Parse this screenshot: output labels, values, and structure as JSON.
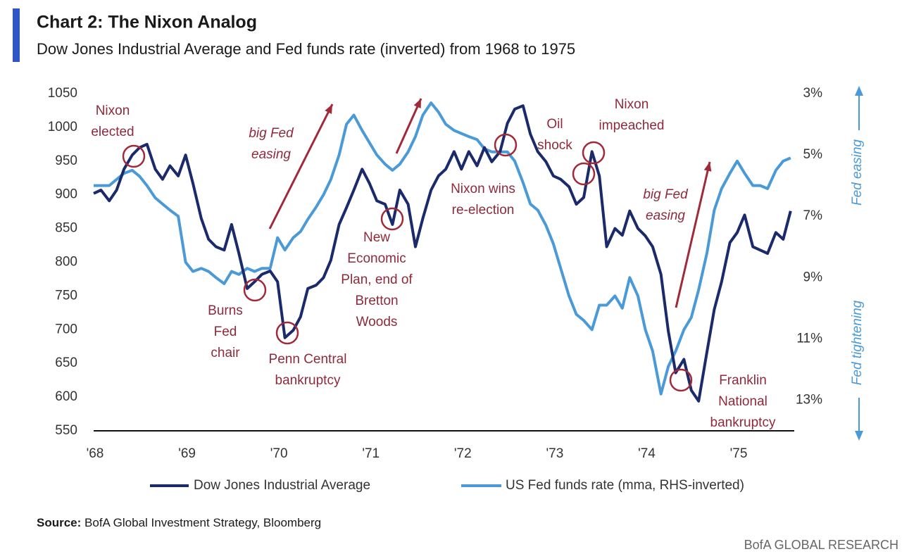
{
  "chart_data": {
    "type": "line",
    "title": "Chart 2: The Nixon Analog",
    "subtitle": "Dow Jones Industrial Average and Fed funds rate (inverted) from 1968 to 1975",
    "x": [
      1968,
      1968.08,
      1968.17,
      1968.25,
      1968.33,
      1968.42,
      1968.5,
      1968.58,
      1968.67,
      1968.75,
      1968.83,
      1968.92,
      1969,
      1969.08,
      1969.17,
      1969.25,
      1969.33,
      1969.42,
      1969.5,
      1969.58,
      1969.67,
      1969.75,
      1969.83,
      1969.92,
      1970,
      1970.08,
      1970.17,
      1970.25,
      1970.33,
      1970.42,
      1970.5,
      1970.58,
      1970.67,
      1970.75,
      1970.83,
      1970.92,
      1971,
      1971.08,
      1971.17,
      1971.25,
      1971.33,
      1971.42,
      1971.5,
      1971.58,
      1971.67,
      1971.75,
      1971.83,
      1971.92,
      1972,
      1972.08,
      1972.17,
      1972.25,
      1972.33,
      1972.42,
      1972.5,
      1972.58,
      1972.67,
      1972.75,
      1972.83,
      1972.92,
      1973,
      1973.08,
      1973.17,
      1973.25,
      1973.33,
      1973.42,
      1973.5,
      1973.58,
      1973.67,
      1973.75,
      1973.83,
      1973.92,
      1974,
      1974.08,
      1974.17,
      1974.25,
      1974.33,
      1974.42,
      1974.5,
      1974.58,
      1974.67,
      1974.75,
      1974.83,
      1974.92,
      1975,
      1975.08,
      1975.17,
      1975.25,
      1975.33,
      1975.42,
      1975.5,
      1975.58
    ],
    "xlim": [
      1968,
      1975.62
    ],
    "xticks": [
      {
        "value": 1968,
        "label": "'68"
      },
      {
        "value": 1969,
        "label": "'69"
      },
      {
        "value": 1970,
        "label": "'70"
      },
      {
        "value": 1971,
        "label": "'71"
      },
      {
        "value": 1972,
        "label": "'72"
      },
      {
        "value": 1973,
        "label": "'73"
      },
      {
        "value": 1974,
        "label": "'74"
      },
      {
        "value": 1975,
        "label": "'75"
      }
    ],
    "ylim": [
      550,
      1050
    ],
    "yticks": [
      550,
      600,
      650,
      700,
      750,
      800,
      850,
      900,
      950,
      1000,
      1050
    ],
    "y2lim": [
      14,
      3
    ],
    "y2ticks": [
      {
        "value": 3,
        "label": "3%"
      },
      {
        "value": 5,
        "label": "5%"
      },
      {
        "value": 7,
        "label": "7%"
      },
      {
        "value": 9,
        "label": "9%"
      },
      {
        "value": 11,
        "label": "11%"
      },
      {
        "value": 13,
        "label": "13%"
      }
    ],
    "series": [
      {
        "name": "Dow Jones Industrial Average",
        "color": "#1b2a6b",
        "values": [
          902,
          907,
          891,
          907,
          938,
          959,
          970,
          975,
          938,
          923,
          943,
          928,
          959,
          917,
          865,
          834,
          823,
          818,
          856,
          813,
          761,
          771,
          782,
          787,
          771,
          688,
          699,
          719,
          761,
          766,
          777,
          803,
          856,
          881,
          907,
          938,
          917,
          891,
          886,
          856,
          907,
          886,
          823,
          865,
          907,
          928,
          938,
          964,
          938,
          964,
          943,
          970,
          949,
          964,
          1006,
          1027,
          1032,
          990,
          964,
          949,
          928,
          923,
          912,
          886,
          896,
          964,
          928,
          823,
          850,
          840,
          876,
          850,
          839,
          823,
          782,
          698,
          636,
          656,
          610,
          594,
          667,
          730,
          771,
          829,
          844,
          870,
          823,
          818,
          813,
          844,
          834,
          876
        ]
      },
      {
        "name": "US Fed funds rate (mma, RHS-inverted)",
        "color": "#4a9ad8",
        "axis": "y2",
        "values": [
          6.0,
          6.0,
          6.0,
          5.8,
          5.6,
          5.5,
          5.7,
          6.0,
          6.4,
          6.6,
          6.8,
          7.0,
          8.5,
          8.8,
          8.7,
          8.8,
          9.0,
          9.2,
          8.8,
          8.9,
          8.7,
          8.8,
          8.7,
          8.7,
          7.7,
          8.1,
          7.7,
          7.5,
          7.1,
          6.7,
          6.3,
          5.8,
          5.0,
          4.0,
          3.7,
          4.2,
          4.6,
          5.0,
          5.3,
          5.5,
          5.3,
          4.9,
          4.4,
          3.7,
          3.3,
          3.6,
          4.0,
          4.2,
          4.3,
          4.4,
          4.5,
          4.8,
          4.9,
          4.9,
          4.9,
          5.2,
          5.9,
          6.6,
          6.8,
          7.3,
          7.9,
          8.7,
          9.6,
          10.2,
          10.4,
          10.7,
          9.9,
          9.9,
          9.6,
          10.0,
          9.0,
          9.6,
          10.7,
          11.4,
          12.8,
          11.9,
          11.4,
          10.7,
          10.3,
          9.4,
          8.2,
          6.8,
          6.1,
          5.6,
          5.2,
          5.6,
          6.0,
          6.0,
          6.1,
          5.5,
          5.2,
          5.1
        ]
      }
    ],
    "annotations": [
      [
        "Nixon",
        "elected"
      ],
      [
        "big Fed",
        "easing"
      ],
      [
        "Burns",
        "Fed",
        "chair"
      ],
      [
        "Penn Central",
        "bankruptcy"
      ],
      [
        "New",
        "Economic",
        "Plan, end of",
        "Bretton",
        "Woods"
      ],
      [
        "Nixon wins",
        "re-election"
      ],
      [
        "Oil",
        "shock"
      ],
      [
        "Nixon",
        "impeached"
      ],
      [
        "big Fed",
        "easing"
      ],
      [
        "Franklin",
        "National",
        "bankruptcy"
      ]
    ],
    "right_axis_labels": [
      "Fed easing",
      "Fed tightening"
    ]
  },
  "source": {
    "label": "Source:",
    "text": "BofA Global Investment Strategy, Bloomberg"
  },
  "branding": "BofA GLOBAL RESEARCH"
}
